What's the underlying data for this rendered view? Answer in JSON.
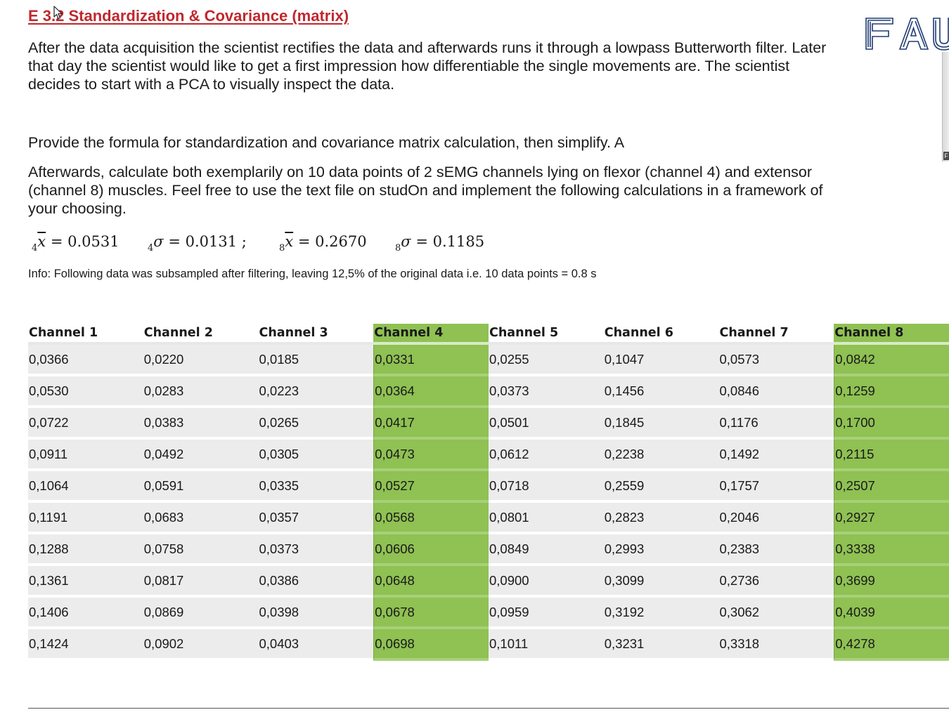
{
  "title": "E 3.2 Standardization & Covariance (matrix)",
  "logo_text": "FAU",
  "scroll_tag": "F",
  "paragraphs": {
    "intro": "After the data acquisition the scientist rectifies the data and afterwards runs it through a lowpass Butterworth filter. Later that day the scientist would like to get a first impression how differentiable the single movements are. The scientist decides to start with a PCA to visually inspect the data.",
    "task1": "Provide the formula for standardization and covariance matrix calculation, then simplify. A",
    "task2": "Afterwards, calculate both exemplarily on 10 data points of 2 sEMG channels lying on flexor (channel 4) and extensor (channel 8) muscles. Feel free to use the text file on studOn and implement the following calculations in a framework of your choosing."
  },
  "formulas": {
    "mean4": {
      "sub": "4",
      "sym": "x",
      "value": "= 0.0531"
    },
    "std4": {
      "sub": "4",
      "sym": "σ",
      "value": "= 0.0131 ;"
    },
    "mean8": {
      "sub": "8",
      "sym": "x",
      "value": "= 0.2670"
    },
    "std8": {
      "sub": "8",
      "sym": "σ",
      "value": "= 0.1185"
    }
  },
  "info": "Info: Following data was subsampled after filtering, leaving 12,5% of the original data i.e. 10 data points = 0.8 s",
  "colors": {
    "title": "#c0282d",
    "highlight": "#8fc153",
    "cell_bg": "#ececec",
    "logo": "#1f3b73"
  },
  "table": {
    "headers": [
      "Channel 1",
      "Channel 2",
      "Channel 3",
      "Channel 4",
      "Channel 5",
      "Channel 6",
      "Channel 7",
      "Channel 8"
    ],
    "highlighted_columns": [
      3,
      7
    ],
    "rows": [
      [
        "0,0366",
        "0,0220",
        "0,0185",
        "0,0331",
        "0,0255",
        "0,1047",
        "0,0573",
        "0,0842"
      ],
      [
        "0,0530",
        "0,0283",
        "0,0223",
        "0,0364",
        "0,0373",
        "0,1456",
        "0,0846",
        "0,1259"
      ],
      [
        "0,0722",
        "0,0383",
        "0,0265",
        "0,0417",
        "0,0501",
        "0,1845",
        "0,1176",
        "0,1700"
      ],
      [
        "0,0911",
        "0,0492",
        "0,0305",
        "0,0473",
        "0,0612",
        "0,2238",
        "0,1492",
        "0,2115"
      ],
      [
        "0,1064",
        "0,0591",
        "0,0335",
        "0,0527",
        "0,0718",
        "0,2559",
        "0,1757",
        "0,2507"
      ],
      [
        "0,1191",
        "0,0683",
        "0,0357",
        "0,0568",
        "0,0801",
        "0,2823",
        "0,2046",
        "0,2927"
      ],
      [
        "0,1288",
        "0,0758",
        "0,0373",
        "0,0606",
        "0,0849",
        "0,2993",
        "0,2383",
        "0,3338"
      ],
      [
        "0,1361",
        "0,0817",
        "0,0386",
        "0,0648",
        "0,0900",
        "0,3099",
        "0,2736",
        "0,3699"
      ],
      [
        "0,1406",
        "0,0869",
        "0,0398",
        "0,0678",
        "0,0959",
        "0,3192",
        "0,3062",
        "0,4039"
      ],
      [
        "0,1424",
        "0,0902",
        "0,0403",
        "0,0698",
        "0,1011",
        "0,3231",
        "0,3318",
        "0,4278"
      ]
    ]
  }
}
